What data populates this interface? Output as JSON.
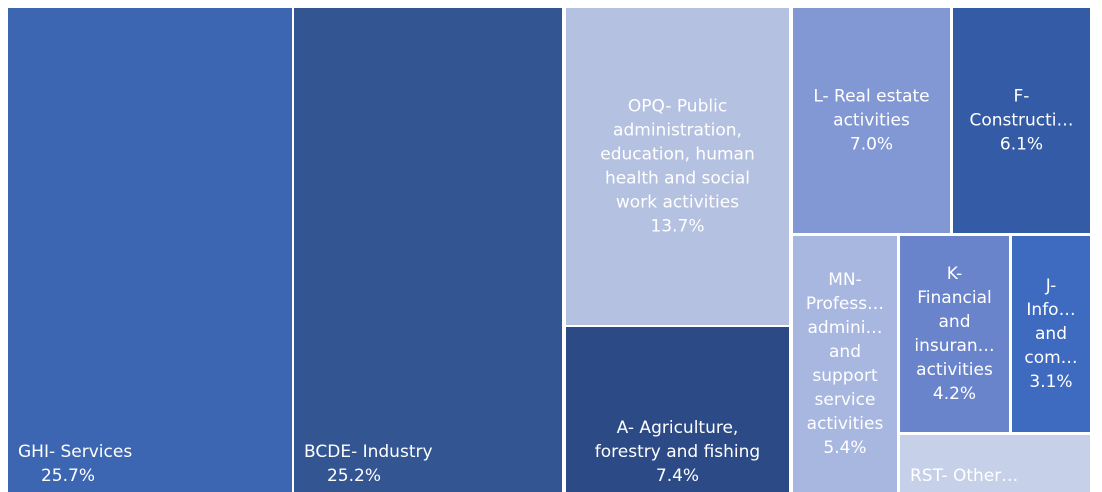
{
  "chart_data": {
    "type": "treemap",
    "title": "",
    "nodes": [
      {
        "id": "ghi",
        "label_lines": [
          "GHI- Services"
        ],
        "value_label": "25.7%",
        "value": 25.7,
        "color": "#3c66b2",
        "text_color": "#ffffff",
        "align": "start",
        "valign": "bottom"
      },
      {
        "id": "bcde",
        "label_lines": [
          "BCDE- Industry"
        ],
        "value_label": "25.2%",
        "value": 25.2,
        "color": "#335592",
        "text_color": "#ffffff",
        "align": "start",
        "valign": "bottom"
      },
      {
        "id": "opq",
        "label_lines": [
          "OPQ- Public",
          "administration,",
          "education, human",
          "health and social",
          "work activities"
        ],
        "value_label": "13.7%",
        "value": 13.7,
        "color": "#b5c1e1",
        "text_color": "#ffffff",
        "align": "middle",
        "valign": "center"
      },
      {
        "id": "a",
        "label_lines": [
          "A- Agriculture,",
          "forestry and fishing"
        ],
        "value_label": "7.4%",
        "value": 7.4,
        "color": "#2b4a86",
        "text_color": "#ffffff",
        "align": "middle",
        "valign": "bottom"
      },
      {
        "id": "l",
        "label_lines": [
          "L- Real estate",
          "activities"
        ],
        "value_label": "7.0%",
        "value": 7.0,
        "color": "#8298d4",
        "text_color": "#ffffff",
        "align": "middle",
        "valign": "center"
      },
      {
        "id": "f",
        "label_lines": [
          "F-",
          "Constructi…"
        ],
        "value_label": "6.1%",
        "value": 6.1,
        "color": "#345ba6",
        "text_color": "#ffffff",
        "align": "middle",
        "valign": "center"
      },
      {
        "id": "mn",
        "label_lines": [
          "MN-",
          "Profess…",
          "admini…",
          "and",
          "support",
          "service",
          "activities"
        ],
        "value_label": "5.4%",
        "value": 5.4,
        "color": "#a8b7df",
        "text_color": "#ffffff",
        "align": "middle",
        "valign": "center"
      },
      {
        "id": "k",
        "label_lines": [
          "K-",
          "Financial",
          "and",
          "insuran…",
          "activities"
        ],
        "value_label": "4.2%",
        "value": 4.2,
        "color": "#6a84cc",
        "text_color": "#ffffff",
        "align": "middle",
        "valign": "center"
      },
      {
        "id": "j",
        "label_lines": [
          "J-",
          "Info…",
          "and",
          "com…"
        ],
        "value_label": "3.1%",
        "value": 3.1,
        "color": "#3e6ac0",
        "text_color": "#ffffff",
        "align": "middle",
        "valign": "center"
      },
      {
        "id": "rst",
        "label_lines": [
          "RST- Other…"
        ],
        "value_label": "",
        "value": null,
        "color": "#c6d0e9",
        "text_color": "#ffffff",
        "align": "start",
        "valign": "bottom"
      }
    ]
  }
}
